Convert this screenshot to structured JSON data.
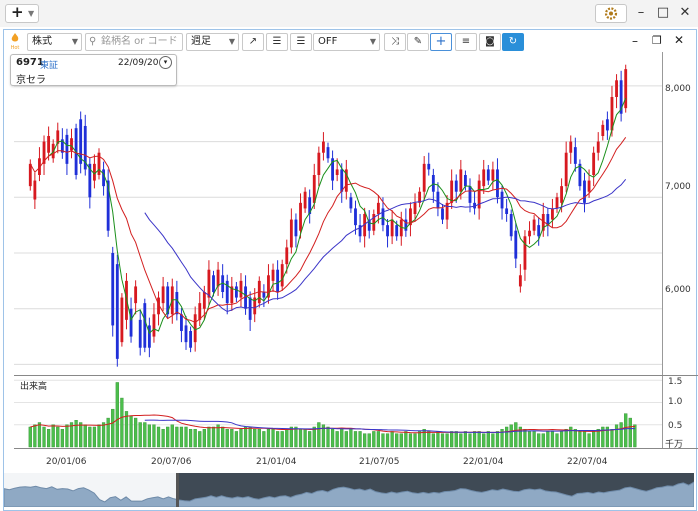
{
  "toolbar": {
    "market": "株式",
    "search_placeholder": "銘柄名 or コード",
    "period": "週足",
    "indicator": "OFF"
  },
  "stock": {
    "code": "6971",
    "exchange": "東証",
    "date": "22/09/20",
    "name": "京セラ"
  },
  "yaxis_labels": [
    "8,000",
    "7,000",
    "6,000"
  ],
  "volume_panel": {
    "label": "出来高",
    "axis_labels": [
      "1.5",
      "1.0",
      "0.5"
    ],
    "unit": "千万"
  },
  "xaxis_labels": [
    "20/01/06",
    "20/07/06",
    "21/01/04",
    "21/07/05",
    "22/01/04",
    "22/07/04"
  ],
  "colors": {
    "up": "#d71920",
    "down": "#1f2fd8",
    "volume": "#4cbe4c",
    "ma_short": "#1a8f1a",
    "ma_mid": "#d32020",
    "ma_long": "#3b35c8"
  },
  "chart_data": {
    "type": "candlestick",
    "ylim": [
      5450,
      8250
    ],
    "vol_ylim": [
      0,
      1.55
    ],
    "candles": [
      [
        7100,
        7300
      ],
      [
        6980,
        7150
      ],
      [
        7200,
        7350
      ],
      [
        7300,
        7500
      ],
      [
        7400,
        7550
      ],
      [
        7350,
        7480
      ],
      [
        7480,
        7600
      ],
      [
        7520,
        7400
      ],
      [
        7560,
        7300
      ],
      [
        7420,
        7530
      ],
      [
        7620,
        7200
      ],
      [
        7700,
        7300
      ],
      [
        7640,
        7250
      ],
      [
        7300,
        7000
      ],
      [
        7150,
        7300
      ],
      [
        7200,
        7400
      ],
      [
        7250,
        7100
      ],
      [
        7150,
        6700
      ],
      [
        6500,
        5850
      ],
      [
        6400,
        5550
      ],
      [
        5700,
        6100
      ],
      [
        5900,
        6250
      ],
      [
        6000,
        5750
      ],
      [
        6050,
        6200
      ],
      [
        5900,
        5650
      ],
      [
        6050,
        5650
      ],
      [
        5850,
        5650
      ],
      [
        5750,
        5950
      ],
      [
        5950,
        6100
      ],
      [
        6050,
        6200
      ],
      [
        6200,
        5950
      ],
      [
        5950,
        6200
      ],
      [
        6150,
        5950
      ],
      [
        5950,
        5800
      ],
      [
        5850,
        5700
      ],
      [
        5800,
        5650
      ],
      [
        5700,
        5950
      ],
      [
        5900,
        6050
      ],
      [
        6000,
        6150
      ],
      [
        6100,
        6350
      ],
      [
        6300,
        6150
      ],
      [
        6200,
        6350
      ],
      [
        6300,
        6150
      ],
      [
        6250,
        6050
      ],
      [
        6050,
        6200
      ],
      [
        6200,
        6100
      ],
      [
        6100,
        6250
      ],
      [
        6200,
        6000
      ],
      [
        6100,
        5900
      ],
      [
        5950,
        6100
      ],
      [
        6050,
        6250
      ],
      [
        6150,
        6100
      ],
      [
        6100,
        6300
      ],
      [
        6250,
        6350
      ],
      [
        6350,
        6150
      ],
      [
        6200,
        6400
      ],
      [
        6400,
        6550
      ],
      [
        6550,
        6800
      ],
      [
        6800,
        6650
      ],
      [
        6700,
        6950
      ],
      [
        6900,
        7050
      ],
      [
        7000,
        6850
      ],
      [
        6950,
        7200
      ],
      [
        7200,
        7400
      ],
      [
        7400,
        7500
      ],
      [
        7450,
        7350
      ],
      [
        7350,
        7150
      ],
      [
        7200,
        7250
      ],
      [
        7250,
        7050
      ],
      [
        7050,
        7250
      ],
      [
        7000,
        6900
      ],
      [
        6900,
        6750
      ],
      [
        6750,
        6650
      ],
      [
        6650,
        6850
      ],
      [
        6800,
        6700
      ],
      [
        6700,
        6850
      ],
      [
        6850,
        6950
      ],
      [
        6900,
        6750
      ],
      [
        6750,
        6650
      ],
      [
        6650,
        6800
      ],
      [
        6750,
        6650
      ],
      [
        6650,
        6800
      ],
      [
        6800,
        6700
      ],
      [
        6750,
        6900
      ],
      [
        6850,
        6950
      ],
      [
        6950,
        7050
      ],
      [
        7050,
        7300
      ],
      [
        7300,
        7250
      ],
      [
        7200,
        7050
      ],
      [
        7050,
        6900
      ],
      [
        6900,
        6800
      ],
      [
        6800,
        6950
      ],
      [
        6950,
        7150
      ],
      [
        7150,
        7050
      ],
      [
        7050,
        7250
      ],
      [
        7200,
        7100
      ],
      [
        7100,
        6950
      ],
      [
        6950,
        6900
      ],
      [
        6900,
        7150
      ],
      [
        7100,
        7250
      ],
      [
        7250,
        7150
      ],
      [
        7150,
        7250
      ],
      [
        7250,
        7000
      ],
      [
        7050,
        6900
      ],
      [
        6900,
        6850
      ],
      [
        6850,
        6650
      ],
      [
        6700,
        6450
      ],
      [
        6200,
        6300
      ],
      [
        6350,
        6650
      ],
      [
        6650,
        6700
      ],
      [
        6700,
        6800
      ],
      [
        6750,
        6650
      ],
      [
        6700,
        6850
      ],
      [
        6850,
        6750
      ],
      [
        6800,
        6900
      ],
      [
        6900,
        7000
      ],
      [
        6950,
        7100
      ],
      [
        7100,
        7400
      ],
      [
        7400,
        7500
      ],
      [
        7450,
        7300
      ],
      [
        7300,
        7100
      ],
      [
        7150,
        6950
      ],
      [
        7050,
        7150
      ],
      [
        7200,
        7400
      ],
      [
        7400,
        7500
      ],
      [
        7550,
        7650
      ],
      [
        7700,
        7600
      ],
      [
        7600,
        7900
      ],
      [
        7900,
        8050
      ],
      [
        8050,
        7750
      ],
      [
        7800,
        8150
      ]
    ],
    "volume": [
      0.45,
      0.5,
      0.55,
      0.45,
      0.4,
      0.5,
      0.45,
      0.4,
      0.5,
      0.55,
      0.6,
      0.55,
      0.5,
      0.45,
      0.45,
      0.5,
      0.55,
      0.65,
      0.85,
      1.45,
      1.1,
      0.8,
      0.7,
      0.65,
      0.55,
      0.55,
      0.5,
      0.5,
      0.45,
      0.4,
      0.45,
      0.5,
      0.45,
      0.45,
      0.45,
      0.4,
      0.4,
      0.35,
      0.4,
      0.45,
      0.45,
      0.5,
      0.45,
      0.4,
      0.4,
      0.35,
      0.4,
      0.45,
      0.45,
      0.4,
      0.4,
      0.35,
      0.4,
      0.4,
      0.35,
      0.35,
      0.4,
      0.45,
      0.45,
      0.4,
      0.4,
      0.35,
      0.45,
      0.55,
      0.5,
      0.45,
      0.4,
      0.35,
      0.4,
      0.35,
      0.4,
      0.35,
      0.35,
      0.3,
      0.3,
      0.35,
      0.35,
      0.3,
      0.3,
      0.35,
      0.3,
      0.3,
      0.35,
      0.3,
      0.3,
      0.35,
      0.4,
      0.35,
      0.3,
      0.35,
      0.3,
      0.3,
      0.35,
      0.35,
      0.3,
      0.35,
      0.3,
      0.35,
      0.35,
      0.3,
      0.35,
      0.3,
      0.35,
      0.4,
      0.45,
      0.5,
      0.55,
      0.45,
      0.4,
      0.35,
      0.35,
      0.3,
      0.3,
      0.35,
      0.35,
      0.3,
      0.35,
      0.4,
      0.45,
      0.4,
      0.35,
      0.35,
      0.3,
      0.35,
      0.4,
      0.45,
      0.45,
      0.4,
      0.5,
      0.55,
      0.75,
      0.65,
      0.5
    ]
  }
}
